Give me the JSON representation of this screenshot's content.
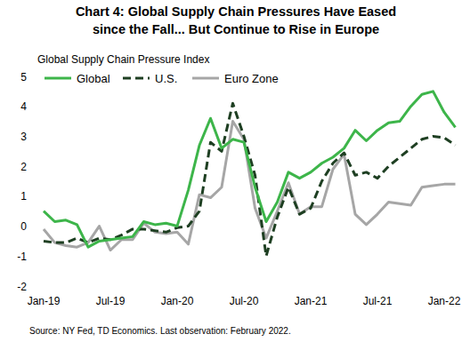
{
  "chart_data": {
    "type": "line",
    "title": [
      "Chart 4: Global Supply Chain Pressures Have Eased",
      "since the Fall... But Continue to Rise in Europe"
    ],
    "y_label": "Global Supply Chain Pressure Index",
    "source": "Source: NY Fed, TD Economics.  Last observation: February 2022.",
    "categories": [
      "Jan-19",
      null,
      null,
      null,
      null,
      null,
      "Jul-19",
      null,
      null,
      null,
      null,
      null,
      "Jan-20",
      null,
      null,
      null,
      null,
      null,
      "Jul-20",
      null,
      null,
      null,
      null,
      null,
      "Jan-21",
      null,
      null,
      null,
      null,
      null,
      "Jul-21",
      null,
      null,
      null,
      null,
      null,
      "Jan-22",
      null
    ],
    "series": [
      {
        "name": "Global",
        "color": "#3db54a",
        "line_style": "solid",
        "values": [
          0.5,
          0.15,
          0.2,
          0.05,
          -0.7,
          -0.5,
          -0.45,
          -0.4,
          -0.35,
          0.15,
          0.05,
          0.1,
          0.0,
          1.2,
          2.7,
          3.6,
          2.6,
          2.9,
          2.8,
          1.3,
          0.15,
          0.8,
          1.8,
          1.6,
          1.8,
          2.1,
          2.3,
          2.6,
          3.2,
          2.85,
          3.2,
          3.45,
          3.5,
          4.0,
          4.4,
          4.5,
          3.8,
          3.3
        ]
      },
      {
        "name": "U.S.",
        "color": "#1e3f22",
        "line_style": "dashed",
        "values": [
          -0.5,
          -0.55,
          -0.55,
          -0.4,
          -0.55,
          -0.4,
          -0.45,
          -0.3,
          -0.1,
          -0.1,
          -0.15,
          -0.2,
          -0.05,
          0.0,
          0.5,
          2.8,
          2.5,
          4.1,
          3.0,
          1.7,
          -1.0,
          0.3,
          1.3,
          0.4,
          0.6,
          1.5,
          2.1,
          2.45,
          1.7,
          1.8,
          1.6,
          2.0,
          2.3,
          2.6,
          2.9,
          3.0,
          2.95,
          2.7
        ]
      },
      {
        "name": "Euro Zone",
        "color": "#a6a6a6",
        "line_style": "solid",
        "values": [
          -0.1,
          -0.55,
          -0.65,
          -0.7,
          -0.55,
          0.0,
          -0.8,
          -0.45,
          -0.45,
          0.1,
          -0.2,
          -0.25,
          -0.2,
          -0.6,
          1.05,
          0.95,
          1.3,
          3.5,
          2.9,
          0.6,
          -0.4,
          0.5,
          1.45,
          0.4,
          0.65,
          0.65,
          1.9,
          2.4,
          0.4,
          0.05,
          0.4,
          0.8,
          0.75,
          0.7,
          1.3,
          1.35,
          1.4,
          1.4
        ]
      }
    ],
    "ylim": [
      -2,
      5
    ],
    "yticks": [
      -2,
      -1,
      0,
      1,
      2,
      3,
      4,
      5
    ],
    "grid": false,
    "legend": "top-left"
  }
}
